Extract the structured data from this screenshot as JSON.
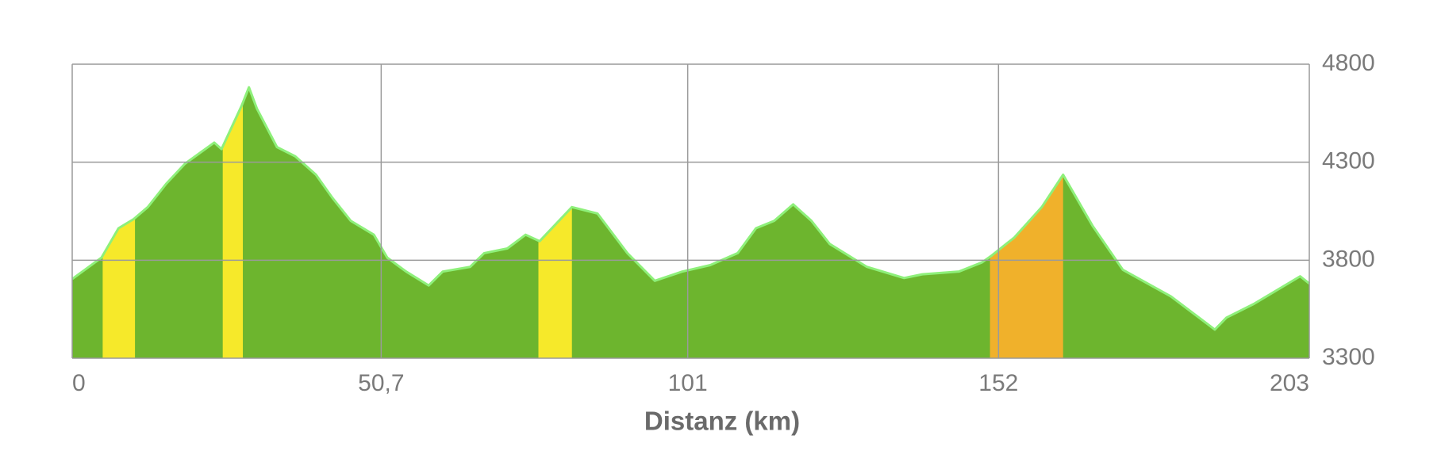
{
  "chart_data": {
    "type": "area",
    "x_label": "Distanz (km)",
    "x": [
      0,
      4.8,
      7.6,
      10.1,
      12.4,
      15.4,
      18.5,
      23.3,
      24.5,
      27.8,
      29.0,
      30.3,
      33.6,
      36.6,
      40.0,
      42.7,
      45.7,
      49.5,
      51.7,
      54.8,
      58.5,
      60.8,
      65.3,
      67.6,
      71.4,
      74.4,
      76.7,
      82.0,
      86.2,
      91.1,
      95.6,
      100.1,
      104.7,
      109.2,
      112.2,
      115.2,
      118.3,
      121.3,
      124.3,
      130.4,
      136.5,
      139.5,
      145.5,
      149.3,
      150.8,
      154.6,
      159.1,
      162.6,
      167.4,
      172.4,
      180.3,
      187.5,
      189.4,
      193.9,
      201.5,
      203
    ],
    "values": [
      3704,
      3813,
      3963,
      4010,
      4071,
      4189,
      4292,
      4400,
      4367,
      4588,
      4682,
      4574,
      4377,
      4330,
      4236,
      4118,
      4001,
      3930,
      3813,
      3742,
      3671,
      3742,
      3766,
      3836,
      3860,
      3930,
      3897,
      4071,
      4038,
      3836,
      3695,
      3742,
      3775,
      3836,
      3963,
      4001,
      4085,
      4001,
      3883,
      3766,
      3709,
      3728,
      3742,
      3789,
      3822,
      3916,
      4071,
      4236,
      3977,
      3751,
      3615,
      3446,
      3507,
      3577,
      3718,
      3681
    ],
    "color": "#6db52e",
    "line_color": "#8ef07a",
    "highlights": [
      {
        "from": 5.0,
        "to": 10.3,
        "color": "#f6e92a"
      },
      {
        "from": 24.7,
        "to": 28.0,
        "color": "#f6e92a"
      },
      {
        "from": 76.5,
        "to": 82.0,
        "color": "#f6e92a"
      },
      {
        "from": 150.6,
        "to": 162.6,
        "color": "#f0b12b"
      }
    ],
    "xlim": [
      0,
      203
    ],
    "xticks": [
      0,
      {
        "value": 50.7,
        "label": "50,7"
      },
      101,
      152,
      203
    ],
    "ylim": [
      3300,
      4800
    ],
    "yticks": [
      3300,
      3800,
      4300,
      4800
    ],
    "grid": true
  }
}
